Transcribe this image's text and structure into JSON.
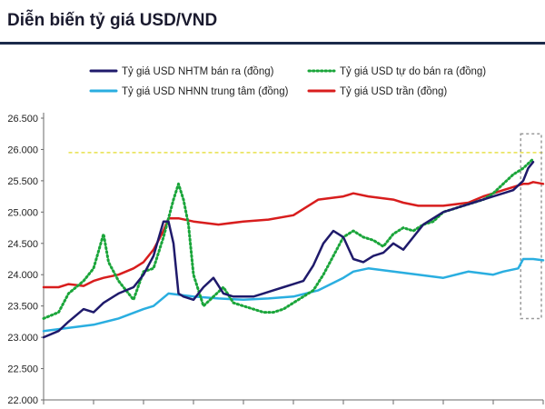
{
  "title": "Diễn biến tỷ giá USD/VND",
  "colors": {
    "nhtm": "#1f1a6b",
    "tudo": "#1aa53a",
    "nhnn": "#2aaee0",
    "tran": "#d81d1d",
    "reference": "#e8e04a",
    "box": "#9a9a9a",
    "title_rule": "#1b2a4a"
  },
  "chart_data": {
    "type": "line",
    "title": "Diễn biến tỷ giá USD/VND",
    "xlabel": "",
    "ylabel": "",
    "ylim": [
      22000,
      26500
    ],
    "yticks": [
      22000,
      22500,
      23000,
      23500,
      24000,
      24500,
      25000,
      25500,
      26000,
      26500
    ],
    "ytick_labels": [
      "22.000",
      "22.500",
      "23.000",
      "23.500",
      "24.000",
      "24.500",
      "25.000",
      "25.500",
      "26.000",
      "26.500"
    ],
    "x_index_range": [
      0,
      100
    ],
    "x_tick_count": 10,
    "grid": false,
    "legend_position": "top",
    "reference_line": {
      "y": 25950,
      "style": "dashed"
    },
    "series": [
      {
        "name": "Tỷ giá USD NHTM bán ra (đồng)",
        "color_key": "nhtm",
        "style": "solid",
        "x": [
          0,
          3,
          5,
          8,
          10,
          12,
          15,
          18,
          20,
          22,
          24,
          25,
          26,
          27,
          28,
          30,
          32,
          34,
          36,
          38,
          40,
          42,
          44,
          46,
          48,
          50,
          52,
          54,
          56,
          58,
          60,
          62,
          64,
          66,
          68,
          70,
          72,
          74,
          76,
          78,
          80,
          82,
          84,
          86,
          88,
          90,
          92,
          94,
          96,
          97,
          98
        ],
        "values": [
          23000,
          23100,
          23250,
          23450,
          23400,
          23550,
          23700,
          23800,
          24000,
          24300,
          24850,
          24850,
          24500,
          23700,
          23650,
          23600,
          23800,
          23950,
          23700,
          23650,
          23650,
          23650,
          23700,
          23750,
          23800,
          23850,
          23900,
          24150,
          24500,
          24700,
          24600,
          24250,
          24200,
          24300,
          24350,
          24500,
          24400,
          24600,
          24800,
          24900,
          25000,
          25050,
          25100,
          25150,
          25200,
          25250,
          25300,
          25350,
          25500,
          25700,
          25800
        ]
      },
      {
        "name": "Tỷ giá USD tự do bán ra (đồng)",
        "color_key": "tudo",
        "style": "dotted",
        "x": [
          0,
          3,
          5,
          8,
          10,
          12,
          13,
          15,
          18,
          20,
          22,
          24,
          26,
          27,
          28,
          29,
          30,
          32,
          34,
          36,
          38,
          40,
          42,
          44,
          46,
          48,
          50,
          52,
          54,
          56,
          58,
          60,
          62,
          64,
          66,
          68,
          70,
          72,
          74,
          76,
          78,
          80,
          82,
          84,
          86,
          88,
          90,
          92,
          94,
          96,
          98
        ],
        "values": [
          23300,
          23400,
          23700,
          23900,
          24100,
          24650,
          24200,
          23900,
          23600,
          24050,
          24100,
          24600,
          25200,
          25450,
          25200,
          24800,
          24000,
          23500,
          23650,
          23800,
          23550,
          23500,
          23450,
          23400,
          23400,
          23450,
          23550,
          23650,
          23750,
          24000,
          24300,
          24600,
          24700,
          24600,
          24550,
          24450,
          24650,
          24750,
          24700,
          24800,
          24850,
          25000,
          25050,
          25100,
          25150,
          25200,
          25300,
          25450,
          25600,
          25700,
          25850
        ]
      },
      {
        "name": "Tỷ giá USD NHNN trung tâm (đồng)",
        "color_key": "nhnn",
        "style": "solid",
        "x": [
          0,
          5,
          10,
          15,
          20,
          22,
          25,
          27,
          30,
          35,
          40,
          45,
          50,
          55,
          60,
          62,
          65,
          70,
          75,
          80,
          85,
          90,
          92,
          95,
          96,
          98,
          100
        ],
        "values": [
          23100,
          23150,
          23200,
          23300,
          23450,
          23500,
          23700,
          23680,
          23650,
          23620,
          23600,
          23620,
          23650,
          23750,
          23950,
          24050,
          24100,
          24050,
          24000,
          23950,
          24050,
          24000,
          24050,
          24100,
          24250,
          24250,
          24230
        ]
      },
      {
        "name": "Tỷ giá USD trần (đồng)",
        "color_key": "tran",
        "style": "solid",
        "x": [
          0,
          3,
          5,
          8,
          10,
          12,
          15,
          18,
          20,
          22,
          24,
          25,
          27,
          30,
          35,
          40,
          45,
          50,
          55,
          60,
          62,
          65,
          70,
          72,
          75,
          80,
          85,
          88,
          90,
          92,
          94,
          96,
          97,
          98,
          100
        ],
        "values": [
          23800,
          23800,
          23850,
          23820,
          23900,
          23950,
          24000,
          24100,
          24200,
          24400,
          24700,
          24900,
          24900,
          24850,
          24800,
          24850,
          24880,
          24950,
          25200,
          25250,
          25300,
          25250,
          25200,
          25150,
          25100,
          25100,
          25150,
          25250,
          25300,
          25350,
          25400,
          25450,
          25450,
          25480,
          25450
        ]
      }
    ]
  }
}
